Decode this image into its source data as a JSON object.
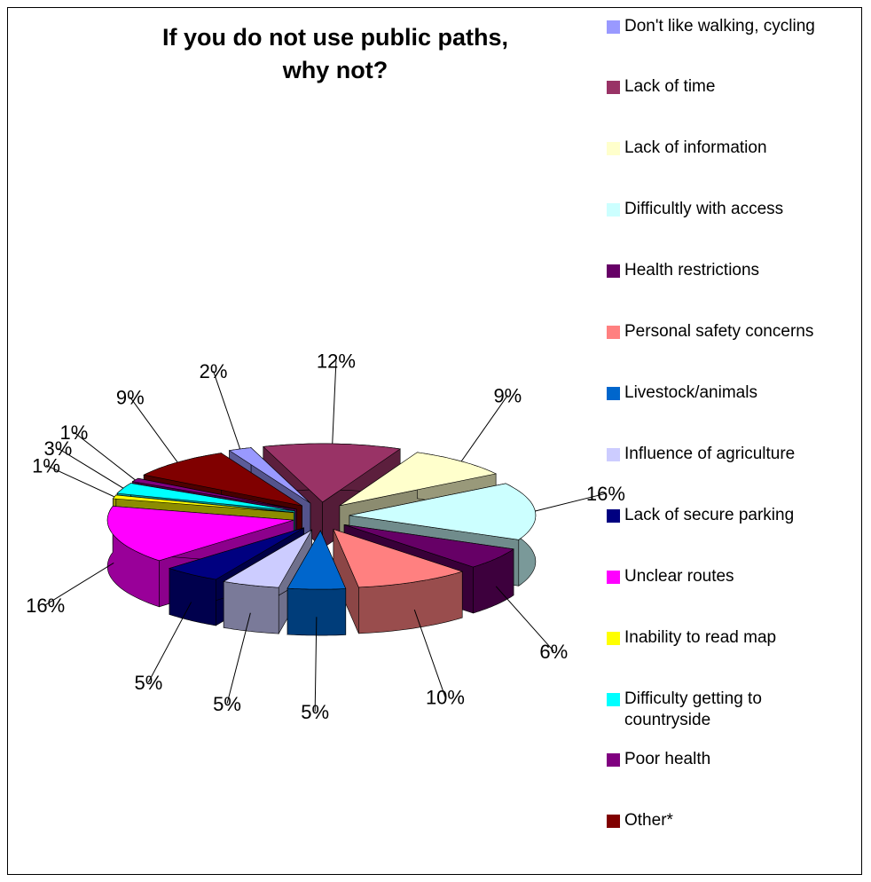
{
  "chart_data": {
    "type": "pie",
    "title": "If you do not use public paths, why not?",
    "legend_position": "right",
    "exploded_3d": true,
    "series": [
      {
        "name": "Don't like walking, cycling",
        "value": 2,
        "label": "2%",
        "color": "#9999FF"
      },
      {
        "name": "Lack of time",
        "value": 12,
        "label": "12%",
        "color": "#993366"
      },
      {
        "name": "Lack of information",
        "value": 9,
        "label": "9%",
        "color": "#FFFFCC"
      },
      {
        "name": "Difficultly with access",
        "value": 16,
        "label": "16%",
        "color": "#CCFFFF"
      },
      {
        "name": "Health restrictions",
        "value": 6,
        "label": "6%",
        "color": "#660066"
      },
      {
        "name": "Personal safety concerns",
        "value": 10,
        "label": "10%",
        "color": "#FF8080"
      },
      {
        "name": "Livestock/animals",
        "value": 5,
        "label": "5%",
        "color": "#0066CC"
      },
      {
        "name": "Influence of agriculture",
        "value": 5,
        "label": "5%",
        "color": "#CCCCFF"
      },
      {
        "name": "Lack of secure parking",
        "value": 5,
        "label": "5%",
        "color": "#000080"
      },
      {
        "name": "Unclear routes",
        "value": 16,
        "label": "16%",
        "color": "#FF00FF"
      },
      {
        "name": "Inability to read map",
        "value": 1,
        "label": "1%",
        "color": "#FFFF00"
      },
      {
        "name": "Difficulty getting to countryside",
        "value": 3,
        "label": "3%",
        "color": "#00FFFF"
      },
      {
        "name": "Poor health",
        "value": 1,
        "label": "1%",
        "color": "#800080"
      },
      {
        "name": "Other*",
        "value": 9,
        "label": "9%",
        "color": "#800000"
      }
    ]
  },
  "legend": [
    {
      "label": "Don't like walking, cycling",
      "color": "#9999FF"
    },
    {
      "label": "Lack of time",
      "color": "#993366"
    },
    {
      "label": "Lack of information",
      "color": "#FFFFCC"
    },
    {
      "label": "Difficultly with access",
      "color": "#CCFFFF"
    },
    {
      "label": "Health restrictions",
      "color": "#660066"
    },
    {
      "label": "Personal safety concerns",
      "color": "#FF8080"
    },
    {
      "label": "Livestock/animals",
      "color": "#0066CC"
    },
    {
      "label": "Influence of agriculture",
      "color": "#CCCCFF"
    },
    {
      "label": "Lack of secure parking",
      "color": "#000080"
    },
    {
      "label": "Unclear routes",
      "color": "#FF00FF"
    },
    {
      "label": "Inability to read map",
      "color": "#FFFF00"
    },
    {
      "label": "Difficulty getting to countryside",
      "color": "#00FFFF"
    },
    {
      "label": "Poor health",
      "color": "#800080"
    },
    {
      "label": "Other*",
      "color": "#800000"
    }
  ]
}
